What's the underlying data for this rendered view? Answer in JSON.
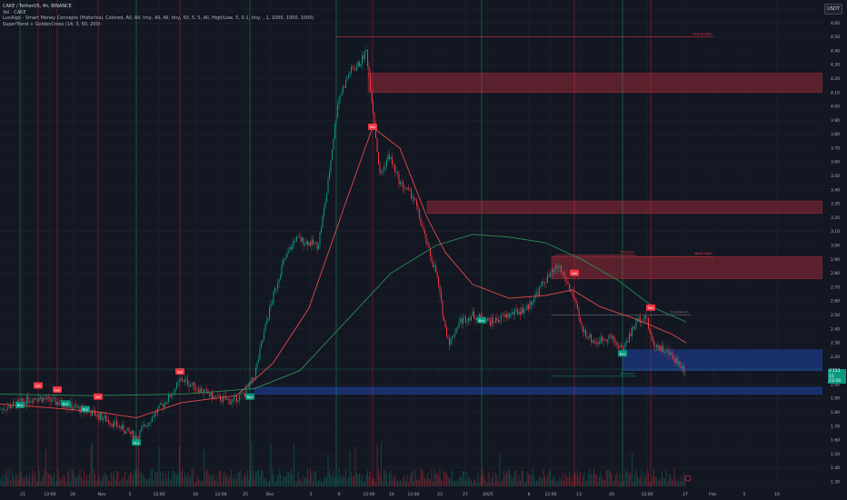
{
  "legend": {
    "title": "CAKE / TetherUS, 4h, BINANCE",
    "vol": "Vol · CAKE",
    "smc": "LuxAlgo - Smart Money Concepts (Historical, Colored, All, All, tiny, All, All, tiny, 50, 5, 5, All, High/Low, 5, 0.1, tiny, , 1, 1000, 1000, 1000)",
    "supertrend": "SuperTrend + GoldenCross (14, 3, 50, 200)"
  },
  "currency": "USDT",
  "last_price": {
    "value": "2.111",
    "sub1": "15",
    "sub2": "23:59"
  },
  "colors": {
    "background": "#131722",
    "bull": "#089981",
    "bear": "#f23645",
    "ema_fast": "#e04a4a",
    "ema_slow": "#2e8b57",
    "supply_zone": "#f23645",
    "demand_zone": "#2962ff"
  },
  "chart_data": {
    "type": "candlestick",
    "symbol": "CAKE / TetherUS",
    "timeframe": "4h",
    "exchange": "BINANCE",
    "ylim": [
      1.2,
      4.8
    ],
    "y_ticks": [
      "4.70",
      "4.60",
      "4.50",
      "4.40",
      "4.30",
      "4.20",
      "4.10",
      "4.00",
      "3.90",
      "3.80",
      "3.70",
      "3.60",
      "3.50",
      "3.40",
      "3.30",
      "3.20",
      "3.10",
      "3.00",
      "2.90",
      "2.80",
      "2.70",
      "2.60",
      "2.50",
      "2.40",
      "2.30",
      "2.20",
      "2.10",
      "2.00",
      "1.90",
      "1.80",
      "1.70",
      "1.60",
      "1.50",
      "1.40",
      "1.30"
    ],
    "x_ticks": [
      "21",
      "12:00",
      "28",
      "Nov",
      "5",
      "12:00",
      "18",
      "12:00",
      "25",
      "Dec",
      "5",
      "9",
      "12:00",
      "16",
      "12:00",
      "23",
      "27",
      "2025",
      "6",
      "12:00",
      "13",
      "20",
      "12:00",
      "27",
      "Feb",
      "5",
      "10"
    ],
    "price_path": [
      [
        0,
        1.82
      ],
      [
        40,
        1.91
      ],
      [
        70,
        1.86
      ],
      [
        100,
        1.8
      ],
      [
        120,
        1.74
      ],
      [
        140,
        1.66
      ],
      [
        150,
        1.62
      ],
      [
        165,
        1.75
      ],
      [
        185,
        1.9
      ],
      [
        200,
        2.04
      ],
      [
        215,
        1.98
      ],
      [
        235,
        1.91
      ],
      [
        255,
        1.88
      ],
      [
        270,
        1.94
      ],
      [
        280,
        2.06
      ],
      [
        295,
        2.5
      ],
      [
        310,
        2.85
      ],
      [
        325,
        3.05
      ],
      [
        340,
        3.02
      ],
      [
        350,
        3.0
      ],
      [
        360,
        3.4
      ],
      [
        372,
        4.05
      ],
      [
        385,
        4.25
      ],
      [
        395,
        4.3
      ],
      [
        403,
        4.4
      ],
      [
        410,
        4.0
      ],
      [
        418,
        3.5
      ],
      [
        428,
        3.65
      ],
      [
        440,
        3.45
      ],
      [
        455,
        3.35
      ],
      [
        470,
        3.0
      ],
      [
        480,
        2.8
      ],
      [
        490,
        2.4
      ],
      [
        495,
        2.3
      ],
      [
        505,
        2.45
      ],
      [
        520,
        2.5
      ],
      [
        540,
        2.45
      ],
      [
        560,
        2.5
      ],
      [
        580,
        2.55
      ],
      [
        600,
        2.75
      ],
      [
        615,
        2.85
      ],
      [
        630,
        2.65
      ],
      [
        640,
        2.4
      ],
      [
        655,
        2.3
      ],
      [
        670,
        2.35
      ],
      [
        685,
        2.25
      ],
      [
        700,
        2.45
      ],
      [
        710,
        2.5
      ],
      [
        718,
        2.3
      ],
      [
        730,
        2.25
      ],
      [
        740,
        2.2
      ],
      [
        755,
        2.1
      ]
    ],
    "ema_fast_path": [
      [
        0,
        1.86
      ],
      [
        60,
        1.83
      ],
      [
        110,
        1.8
      ],
      [
        150,
        1.76
      ],
      [
        200,
        1.87
      ],
      [
        260,
        1.92
      ],
      [
        300,
        2.15
      ],
      [
        340,
        2.55
      ],
      [
        380,
        3.3
      ],
      [
        410,
        3.85
      ],
      [
        440,
        3.7
      ],
      [
        470,
        3.2
      ],
      [
        490,
        2.95
      ],
      [
        520,
        2.72
      ],
      [
        560,
        2.62
      ],
      [
        600,
        2.64
      ],
      [
        630,
        2.68
      ],
      [
        660,
        2.56
      ],
      [
        700,
        2.47
      ],
      [
        740,
        2.36
      ],
      [
        755,
        2.3
      ]
    ],
    "ema_slow_path": [
      [
        0,
        1.93
      ],
      [
        100,
        1.92
      ],
      [
        200,
        1.93
      ],
      [
        280,
        1.97
      ],
      [
        330,
        2.1
      ],
      [
        380,
        2.45
      ],
      [
        430,
        2.8
      ],
      [
        480,
        3.0
      ],
      [
        520,
        3.08
      ],
      [
        560,
        3.06
      ],
      [
        600,
        3.02
      ],
      [
        640,
        2.9
      ],
      [
        680,
        2.75
      ],
      [
        720,
        2.55
      ],
      [
        755,
        2.45
      ]
    ],
    "signals": [
      {
        "label": "Buy",
        "type": "buy",
        "x": 22,
        "y": 1.85
      },
      {
        "label": "Sell",
        "type": "sell",
        "x": 42,
        "y": 1.99
      },
      {
        "label": "Sell",
        "type": "sell",
        "x": 63,
        "y": 1.96
      },
      {
        "label": "Buy",
        "type": "buy",
        "x": 72,
        "y": 1.86
      },
      {
        "label": "Buy",
        "type": "buy",
        "x": 94,
        "y": 1.82
      },
      {
        "label": "Sell",
        "type": "sell",
        "x": 108,
        "y": 1.91
      },
      {
        "label": "Buy",
        "type": "buy",
        "x": 150,
        "y": 1.58
      },
      {
        "label": "Sell",
        "type": "sell",
        "x": 198,
        "y": 2.09
      },
      {
        "label": "Buy",
        "type": "buy",
        "x": 275,
        "y": 1.91
      },
      {
        "label": "Sell",
        "type": "sell",
        "x": 410,
        "y": 3.85
      },
      {
        "label": "Buy",
        "type": "buy",
        "x": 530,
        "y": 2.46
      },
      {
        "label": "Sell",
        "type": "sell",
        "x": 632,
        "y": 2.8
      },
      {
        "label": "Buy",
        "type": "buy",
        "x": 685,
        "y": 2.22
      },
      {
        "label": "Sell",
        "type": "sell",
        "x": 716,
        "y": 2.55
      }
    ],
    "zones": [
      {
        "type": "supply",
        "y_top": 4.24,
        "y_bottom": 4.1,
        "x_start": 405
      },
      {
        "type": "supply",
        "y_top": 3.32,
        "y_bottom": 3.23,
        "x_start": 470
      },
      {
        "type": "supply",
        "y_top": 2.92,
        "y_bottom": 2.76,
        "x_start": 607
      },
      {
        "type": "demand",
        "y_top": 2.25,
        "y_bottom": 2.1,
        "x_start": 685
      },
      {
        "type": "demand",
        "y_top": 1.98,
        "y_bottom": 1.93,
        "x_start": 280
      }
    ],
    "levels": [
      {
        "label": "Weak High",
        "y": 2.92,
        "x_start": 607,
        "x_end": 785
      },
      {
        "label": "Strong High",
        "y": 4.5,
        "x_start": 370,
        "x_end": 785
      },
      {
        "label": "Equilibrium",
        "y": 2.5,
        "x_start": 607,
        "x_end": 760
      },
      {
        "label": "Premium",
        "y": 2.93,
        "x_start": 610,
        "x_end": 700
      },
      {
        "label": "Discount",
        "y": 2.06,
        "x_start": 607,
        "x_end": 700
      }
    ],
    "vertical_markers": [
      {
        "type": "buy",
        "x": 22
      },
      {
        "type": "buy",
        "x": 150
      },
      {
        "type": "buy",
        "x": 275
      },
      {
        "type": "buy",
        "x": 370
      },
      {
        "type": "buy",
        "x": 530
      },
      {
        "type": "buy",
        "x": 685
      },
      {
        "type": "sell",
        "x": 42
      },
      {
        "type": "sell",
        "x": 63
      },
      {
        "type": "sell",
        "x": 108
      },
      {
        "type": "sell",
        "x": 198
      },
      {
        "type": "sell",
        "x": 410
      },
      {
        "type": "sell",
        "x": 632
      },
      {
        "type": "sell",
        "x": 716
      }
    ],
    "grid": true
  }
}
